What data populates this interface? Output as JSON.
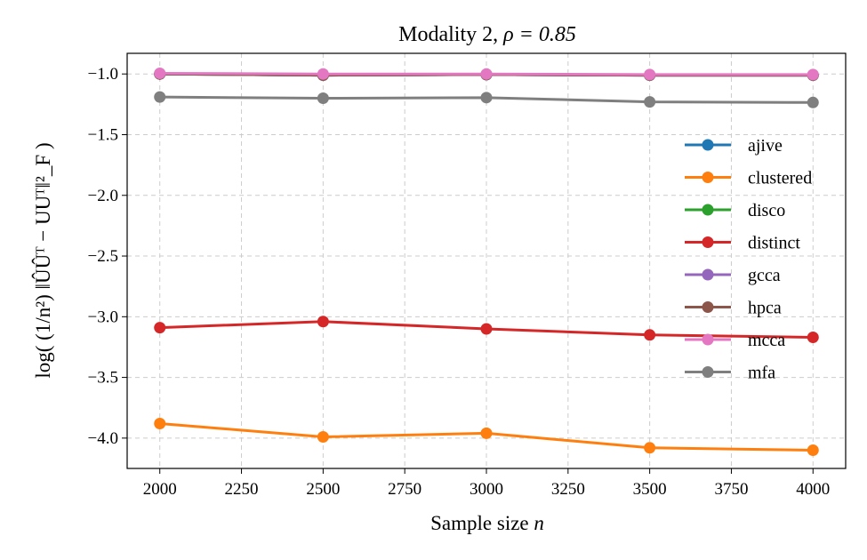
{
  "chart_data": {
    "type": "line",
    "title_prefix": "Modality 2, ",
    "title_math": "ρ = 0.85",
    "xlabel_text": "Sample size ",
    "xlabel_math": "n",
    "ylabel": "log( (1/n²) ‖ÛÛᵀ − UUᵀ‖²_F )",
    "x": [
      2000,
      2500,
      3000,
      3500,
      4000
    ],
    "xlim": [
      1900,
      4100
    ],
    "ylim": [
      -4.25,
      -0.83
    ],
    "xticks": [
      2000,
      2250,
      2500,
      2750,
      3000,
      3250,
      3500,
      3750,
      4000
    ],
    "xtick_labels": [
      "2000",
      "2250",
      "2500",
      "2750",
      "3000",
      "3250",
      "3500",
      "3750",
      "4000"
    ],
    "yticks": [
      -1.0,
      -1.5,
      -2.0,
      -2.5,
      -3.0,
      -3.5,
      -4.0
    ],
    "ytick_labels": [
      "−1.0",
      "−1.5",
      "−2.0",
      "−2.5",
      "−3.0",
      "−3.5",
      "−4.0"
    ],
    "grid": true,
    "legend_position": "right",
    "series": [
      {
        "name": "ajive",
        "color": "#1f77b4",
        "values": [
          -1.0,
          -1.01,
          -1.005,
          -1.01,
          -1.01
        ]
      },
      {
        "name": "clustered",
        "color": "#ff7f0e",
        "values": [
          -3.88,
          -3.99,
          -3.96,
          -4.08,
          -4.1
        ]
      },
      {
        "name": "disco",
        "color": "#2ca02c",
        "values": [
          -1.0,
          -1.01,
          -1.005,
          -1.01,
          -1.01
        ]
      },
      {
        "name": "distinct",
        "color": "#d62728",
        "values": [
          -3.09,
          -3.04,
          -3.1,
          -3.15,
          -3.17
        ]
      },
      {
        "name": "gcca",
        "color": "#9467bd",
        "values": [
          -1.0,
          -1.01,
          -1.005,
          -1.01,
          -1.01
        ]
      },
      {
        "name": "hpca",
        "color": "#8c564b",
        "values": [
          -1.0,
          -1.01,
          -1.005,
          -1.01,
          -1.01
        ]
      },
      {
        "name": "mcca",
        "color": "#e377c2",
        "values": [
          -0.995,
          -1.0,
          -1.0,
          -1.005,
          -1.005
        ]
      },
      {
        "name": "mfa",
        "color": "#7f7f7f",
        "values": [
          -1.19,
          -1.2,
          -1.195,
          -1.23,
          -1.235
        ]
      }
    ]
  }
}
